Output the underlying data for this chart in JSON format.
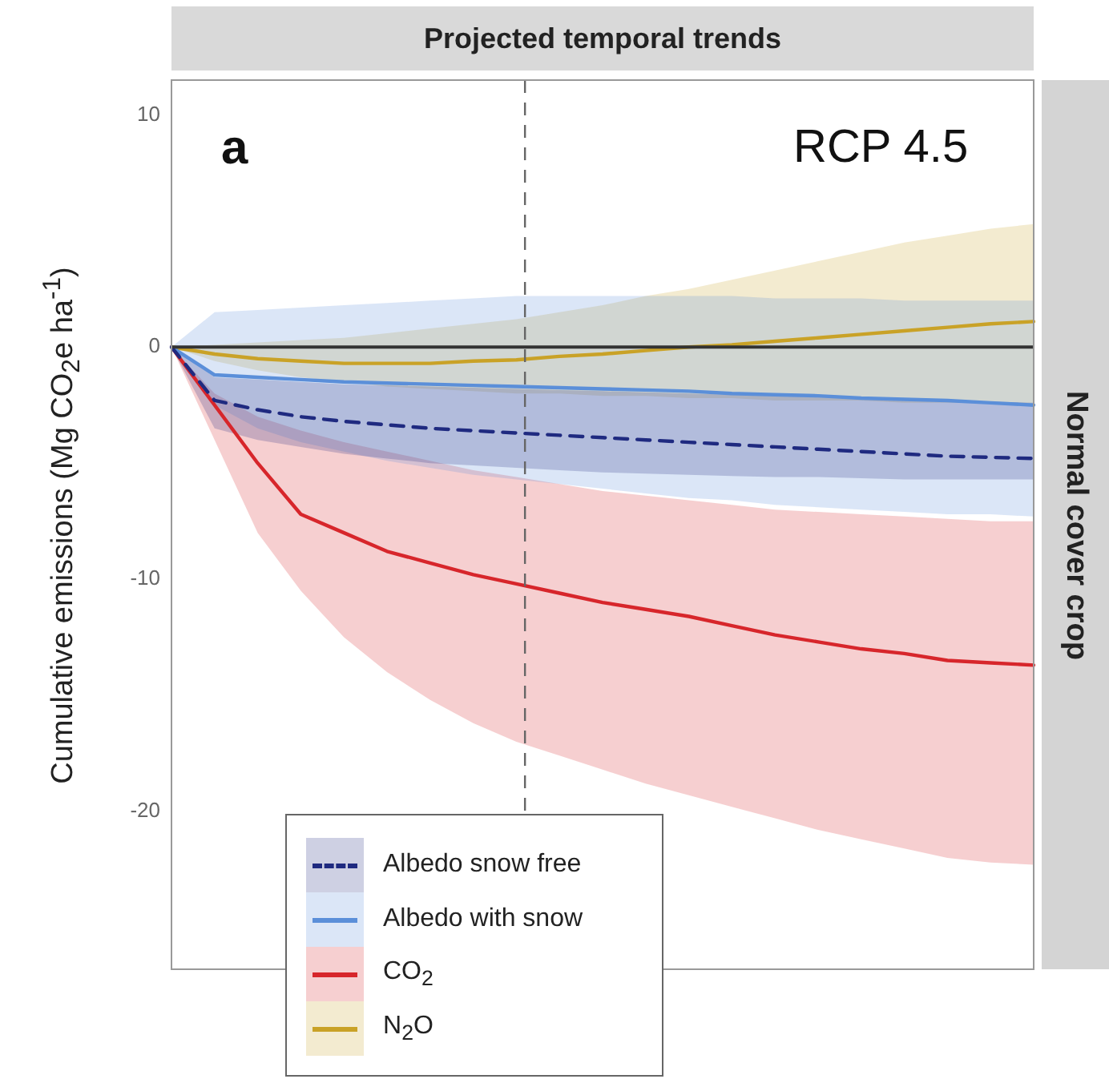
{
  "chart_data": {
    "type": "line",
    "title": "Projected temporal trends",
    "ylabel": "Cumulative emissions (Mg CO$_{2}$e ha$^{-1}$)",
    "annotations": [
      "a",
      "RCP 4.5",
      "Normal cover crop"
    ],
    "categories": [
      null,
      null,
      null,
      null,
      null,
      null,
      null,
      null,
      null,
      null,
      null,
      null,
      null,
      null,
      null,
      null,
      null,
      null,
      null,
      null,
      null
    ],
    "ylim": [
      -26.8,
      11.5
    ],
    "yticks": [
      10,
      0,
      -10,
      -20
    ],
    "tick_labels": "y",
    "grid": false,
    "legend": "bottom left",
    "ref_lines": [
      {
        "axis": "y",
        "value": 0,
        "color": "#333333",
        "line_style": "solid"
      }
    ],
    "series": [
      {
        "name": "Albedo snow free",
        "color": "#1f2a80",
        "line_style": "dashed",
        "values": [
          0,
          -2.3,
          -2.7,
          -3.0,
          -3.2,
          -3.35,
          -3.5,
          -3.6,
          -3.7,
          -3.8,
          -3.9,
          -4.0,
          -4.1,
          -4.2,
          -4.3,
          -4.4,
          -4.5,
          -4.6,
          -4.7,
          -4.75,
          -4.8
        ],
        "upper": [
          0,
          -1.3,
          -1.4,
          -1.5,
          -1.6,
          -1.65,
          -1.7,
          -1.75,
          -1.8,
          -1.85,
          -1.9,
          -1.95,
          -2.0,
          -2.05,
          -2.1,
          -2.15,
          -2.2,
          -2.25,
          -2.3,
          -2.35,
          -2.4
        ],
        "lower": [
          0,
          -3.5,
          -4.0,
          -4.3,
          -4.6,
          -4.8,
          -5.0,
          -5.1,
          -5.2,
          -5.3,
          -5.4,
          -5.45,
          -5.5,
          -5.55,
          -5.6,
          -5.6,
          -5.65,
          -5.7,
          -5.7,
          -5.7,
          -5.7
        ]
      },
      {
        "name": "Albedo with snow",
        "color": "#5b8fd9",
        "line_style": "solid",
        "values": [
          0,
          -1.2,
          -1.3,
          -1.4,
          -1.5,
          -1.55,
          -1.6,
          -1.65,
          -1.7,
          -1.75,
          -1.8,
          -1.85,
          -1.9,
          -2.0,
          -2.05,
          -2.1,
          -2.2,
          -2.25,
          -2.3,
          -2.4,
          -2.5
        ],
        "upper": [
          0,
          1.5,
          1.6,
          1.7,
          1.8,
          1.9,
          2.0,
          2.1,
          2.2,
          2.2,
          2.2,
          2.2,
          2.2,
          2.2,
          2.1,
          2.1,
          2.1,
          2.0,
          2.0,
          2.0,
          2.0
        ],
        "lower": [
          0,
          -2.5,
          -3.5,
          -4.1,
          -4.5,
          -4.9,
          -5.2,
          -5.5,
          -5.7,
          -5.9,
          -6.1,
          -6.3,
          -6.5,
          -6.6,
          -6.8,
          -6.9,
          -7.0,
          -7.1,
          -7.2,
          -7.2,
          -7.3
        ]
      },
      {
        "name": "CO$_{2}$",
        "color": "#d7262b",
        "line_style": "solid",
        "values": [
          0,
          -2.5,
          -5.0,
          -7.2,
          -8.0,
          -8.8,
          -9.3,
          -9.8,
          -10.2,
          -10.6,
          -11.0,
          -11.3,
          -11.6,
          -12.0,
          -12.4,
          -12.7,
          -13.0,
          -13.2,
          -13.5,
          -13.6,
          -13.7
        ],
        "upper": [
          0,
          -2.0,
          -3.0,
          -3.6,
          -4.1,
          -4.5,
          -4.9,
          -5.3,
          -5.6,
          -5.9,
          -6.2,
          -6.4,
          -6.6,
          -6.8,
          -7.0,
          -7.1,
          -7.2,
          -7.3,
          -7.4,
          -7.5,
          -7.5
        ],
        "lower": [
          0,
          -4.0,
          -8.0,
          -10.5,
          -12.5,
          -14.0,
          -15.2,
          -16.2,
          -17.0,
          -17.6,
          -18.2,
          -18.8,
          -19.3,
          -19.8,
          -20.3,
          -20.8,
          -21.2,
          -21.6,
          -22.0,
          -22.2,
          -22.3
        ]
      },
      {
        "name": "N$_{2}$O",
        "color": "#c9a227",
        "line_style": "solid",
        "values": [
          0,
          -0.3,
          -0.5,
          -0.6,
          -0.7,
          -0.7,
          -0.7,
          -0.6,
          -0.55,
          -0.4,
          -0.3,
          -0.15,
          0,
          0.1,
          0.25,
          0.4,
          0.55,
          0.7,
          0.85,
          1.0,
          1.1
        ],
        "upper": [
          0,
          0.1,
          0.2,
          0.3,
          0.4,
          0.6,
          0.8,
          1.0,
          1.2,
          1.5,
          1.8,
          2.2,
          2.5,
          2.9,
          3.3,
          3.7,
          4.1,
          4.5,
          4.8,
          5.1,
          5.3
        ],
        "lower": [
          0,
          -0.6,
          -1.0,
          -1.3,
          -1.5,
          -1.7,
          -1.8,
          -1.9,
          -2.0,
          -2.0,
          -2.1,
          -2.1,
          -2.2,
          -2.2,
          -2.3,
          -2.3,
          -2.3,
          -2.4,
          -2.4,
          -2.4,
          -2.5
        ]
      }
    ]
  }
}
